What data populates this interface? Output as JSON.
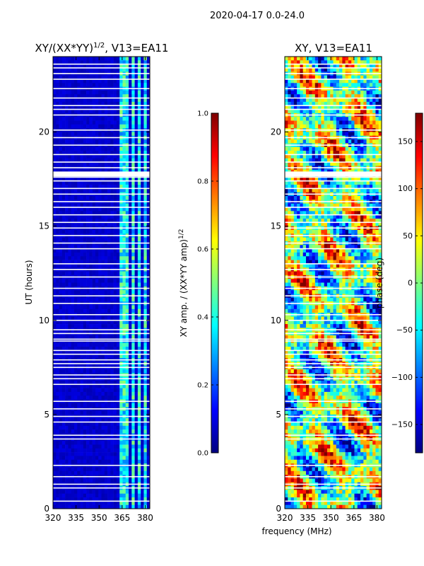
{
  "figure": {
    "suptitle": "2020-04-17 0.0-24.0",
    "xlabel_shared": "frequency (MHz)"
  },
  "colors": {
    "jet": [
      "#00007f",
      "#0000ff",
      "#007fff",
      "#00ffff",
      "#7fff7f",
      "#ffff00",
      "#ff7f00",
      "#ff0000",
      "#7f0000"
    ],
    "gap": "#ffffff",
    "frame": "#000000"
  },
  "chart_data": [
    {
      "type": "heatmap",
      "name": "normalized-amplitude",
      "title_main": "XY/(XX*YY)",
      "title_sup": "1/2",
      "title_tail": ", V13=EA11",
      "xlabel": "frequency (MHz)",
      "ylabel": "UT (hours)",
      "xlim": [
        320,
        383
      ],
      "ylim": [
        0,
        24
      ],
      "xticks": [
        320,
        335,
        350,
        365,
        380
      ],
      "yticks": [
        0,
        5,
        10,
        15,
        20
      ],
      "colorbar": {
        "label_main": "XY amp. / (XX*YY amp)",
        "label_sup": "1/2",
        "range": [
          0.0,
          1.0
        ],
        "ticks": [
          "0.0",
          "0.2",
          "0.4",
          "0.6",
          "0.8",
          "1.0"
        ]
      },
      "bright_channels_mhz": [
        364.5,
        367.5,
        372,
        376,
        380
      ],
      "typical_value_background": 0.05,
      "typical_value_bright": 0.45
    },
    {
      "type": "heatmap",
      "name": "phase",
      "title": "XY, V13=EA11",
      "xlabel": "frequency (MHz)",
      "ylabel": "phase (deg)",
      "xlim": [
        320,
        383
      ],
      "ylim": [
        0,
        24
      ],
      "xticks": [
        320,
        335,
        350,
        365,
        380
      ],
      "yticks": [
        0,
        5,
        10,
        15,
        20
      ],
      "colorbar": {
        "label": "phase (deg)",
        "range": [
          -180,
          180
        ],
        "ticks": [
          "-150",
          "-100",
          "-50",
          "0",
          "50",
          "100",
          "150"
        ]
      },
      "value_range_deg": [
        -180,
        180
      ]
    }
  ],
  "flagged_hours": [
    0.4,
    1.1,
    1.3,
    1.7,
    2.3,
    3.7,
    3.9,
    4.6,
    4.9,
    5.3,
    5.7,
    6.6,
    6.9,
    7.1,
    7.5,
    7.7,
    7.9,
    8.2,
    8.4,
    8.9,
    9.0,
    9.3,
    9.5,
    10.0,
    10.3,
    10.9,
    11.3,
    11.7,
    12.3,
    12.7,
    13.0,
    13.8,
    14.1,
    14.5,
    14.9,
    15.2,
    15.6,
    16.0,
    16.3,
    16.7,
    17.0,
    17.4,
    17.6,
    17.8,
    18.1,
    18.4,
    18.8,
    19.3,
    19.7,
    20.1,
    20.9,
    21.2,
    21.4,
    21.8,
    22.3,
    22.8,
    23.1,
    23.4,
    23.6
  ]
}
